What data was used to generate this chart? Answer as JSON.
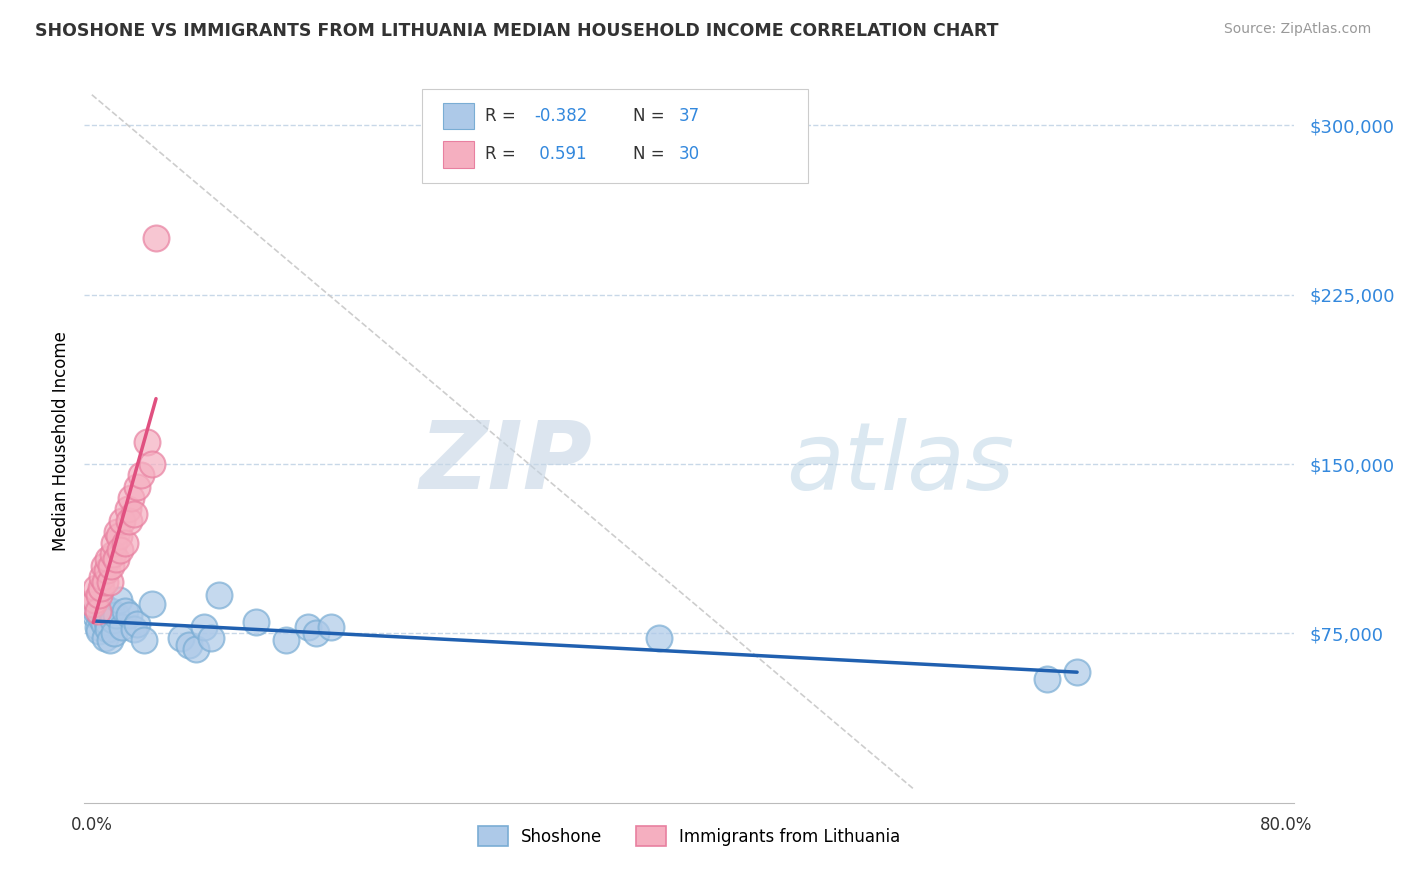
{
  "title": "SHOSHONE VS IMMIGRANTS FROM LITHUANIA MEDIAN HOUSEHOLD INCOME CORRELATION CHART",
  "source": "Source: ZipAtlas.com",
  "ylabel": "Median Household Income",
  "watermark_zip": "ZIP",
  "watermark_atlas": "atlas",
  "legend_labels": [
    "Shoshone",
    "Immigrants from Lithuania"
  ],
  "shoshone_R": -0.382,
  "shoshone_N": 37,
  "lithuania_R": 0.591,
  "lithuania_N": 30,
  "shoshone_color": "#adc9e8",
  "shoshone_edge_color": "#7aadd4",
  "shoshone_line_color": "#2060b0",
  "lithuania_color": "#f5afc0",
  "lithuania_edge_color": "#e880a0",
  "lithuania_line_color": "#e05080",
  "ref_line_color": "#c8c8c8",
  "grid_color": "#c8d8e8",
  "bg_color": "#ffffff",
  "ylim": [
    0,
    320000
  ],
  "xlim_min": -0.005,
  "xlim_max": 0.805,
  "yticks": [
    75000,
    150000,
    225000,
    300000
  ],
  "ytick_labels": [
    "$75,000",
    "$150,000",
    "$225,000",
    "$300,000"
  ],
  "shoshone_x": [
    0.002,
    0.003,
    0.004,
    0.005,
    0.006,
    0.007,
    0.008,
    0.009,
    0.01,
    0.011,
    0.012,
    0.013,
    0.014,
    0.015,
    0.016,
    0.018,
    0.02,
    0.022,
    0.025,
    0.028,
    0.03,
    0.035,
    0.04,
    0.06,
    0.065,
    0.07,
    0.075,
    0.08,
    0.085,
    0.11,
    0.13,
    0.145,
    0.15,
    0.16,
    0.38,
    0.64,
    0.66
  ],
  "shoshone_y": [
    83000,
    85000,
    78000,
    76000,
    82000,
    88000,
    79000,
    73000,
    80000,
    77000,
    72000,
    85000,
    81000,
    75000,
    83000,
    90000,
    78000,
    85000,
    83000,
    77000,
    79000,
    72000,
    88000,
    73000,
    70000,
    68000,
    78000,
    73000,
    92000,
    80000,
    72000,
    78000,
    75000,
    78000,
    73000,
    55000,
    58000
  ],
  "lithuania_x": [
    0.001,
    0.002,
    0.003,
    0.004,
    0.005,
    0.006,
    0.007,
    0.008,
    0.009,
    0.01,
    0.011,
    0.012,
    0.013,
    0.014,
    0.015,
    0.016,
    0.017,
    0.018,
    0.019,
    0.02,
    0.022,
    0.024,
    0.025,
    0.026,
    0.028,
    0.03,
    0.033,
    0.037,
    0.04,
    0.043
  ],
  "lithuania_y": [
    88000,
    90000,
    95000,
    85000,
    92000,
    95000,
    100000,
    105000,
    98000,
    103000,
    108000,
    98000,
    105000,
    110000,
    115000,
    108000,
    120000,
    118000,
    112000,
    125000,
    115000,
    130000,
    125000,
    135000,
    128000,
    140000,
    145000,
    160000,
    150000,
    250000
  ]
}
